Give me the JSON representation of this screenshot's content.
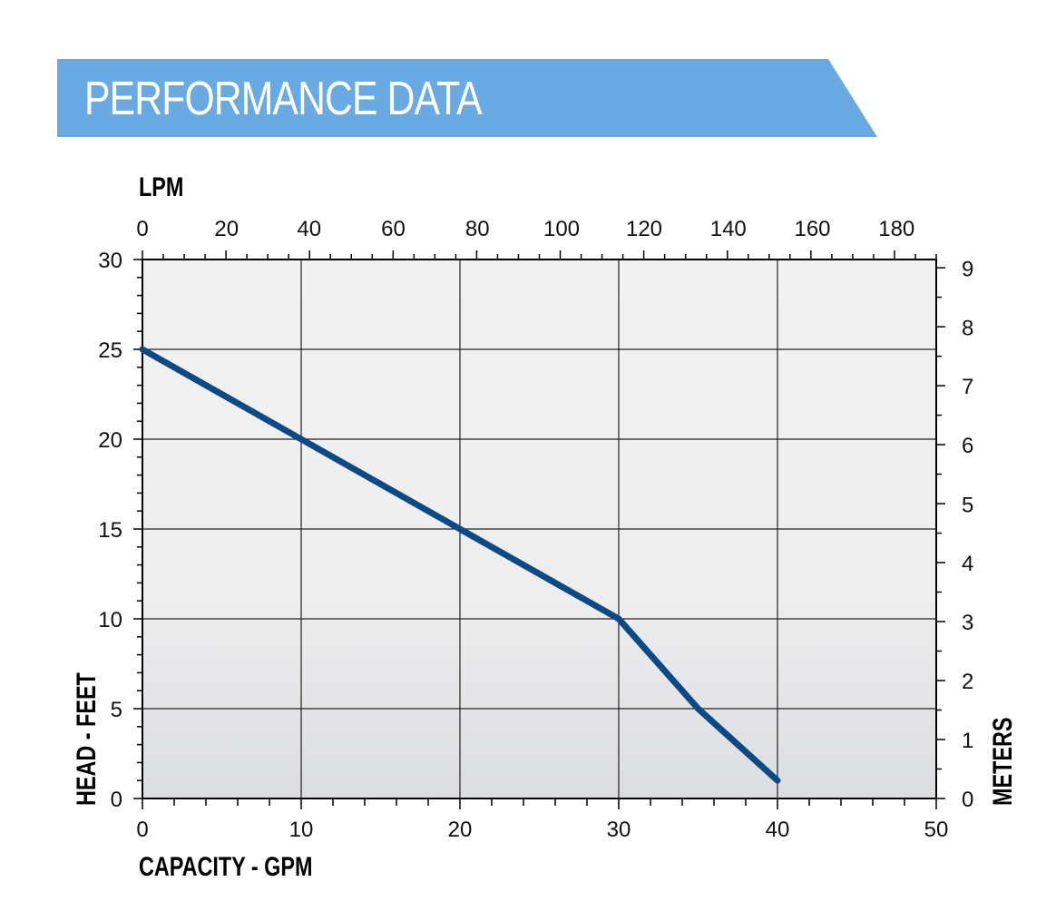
{
  "header": {
    "title": "PERFORMANCE DATA",
    "color": "#6aaae3"
  },
  "chart_data": {
    "type": "line",
    "x_label": "CAPACITY - GPM",
    "x2_label": "LPM",
    "y_label": "HEAD - FEET",
    "y2_label": "METERS",
    "xlim": [
      0,
      50
    ],
    "ylim": [
      0,
      30
    ],
    "x2lim": [
      0,
      190
    ],
    "y2lim": [
      0,
      9.2
    ],
    "x_ticks": [
      0,
      10,
      20,
      30,
      40,
      50
    ],
    "y_ticks": [
      0,
      5,
      10,
      15,
      20,
      25,
      30
    ],
    "x2_ticks": [
      0,
      20,
      40,
      60,
      80,
      100,
      120,
      140,
      160,
      180
    ],
    "y2_ticks": [
      0,
      1,
      2,
      3,
      4,
      5,
      6,
      7,
      8,
      9
    ],
    "grid": true,
    "series": [
      {
        "x": [
          0,
          10,
          20,
          30,
          35,
          40
        ],
        "y": [
          25,
          20,
          15,
          10,
          5,
          1
        ],
        "color": "#0b4a85"
      }
    ],
    "x2_tick_positions_gpm": [
      0,
      5.3,
      10.5,
      15.8,
      21.1,
      26.4,
      31.6,
      36.9,
      42.2,
      47.5
    ],
    "y2_tick_positions_ft": [
      0,
      3.28,
      6.56,
      9.84,
      13.12,
      16.4,
      19.69,
      22.97,
      26.25,
      29.53
    ]
  }
}
